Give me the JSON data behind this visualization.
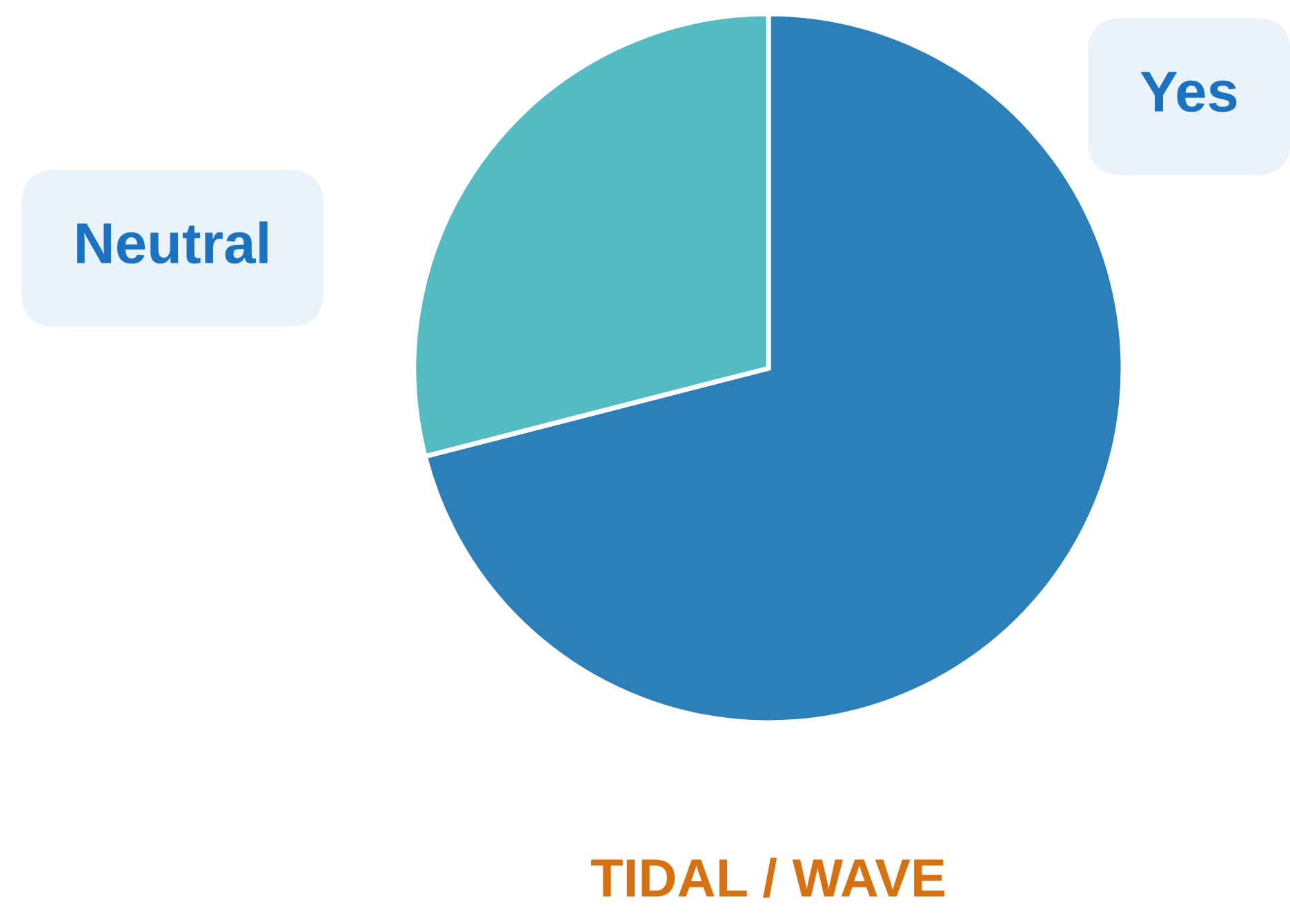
{
  "chart_data": {
    "type": "pie",
    "title": "TIDAL / WAVE",
    "categories": [
      "Yes",
      "Neutral"
    ],
    "values": [
      71,
      29
    ],
    "colors": [
      "#2b80b9",
      "#52bcc2"
    ]
  }
}
